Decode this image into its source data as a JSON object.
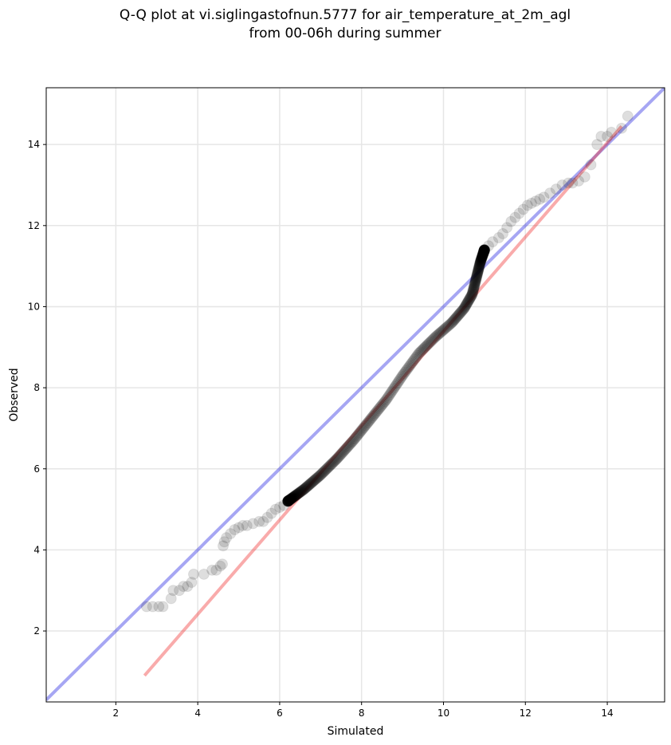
{
  "chart_data": {
    "type": "scatter",
    "title": "Q-Q plot at vi.siglingastofnun.5777 for air_temperature_at_2m_agl\nfrom 00-06h during summer",
    "xlabel": "Simulated",
    "ylabel": "Observed",
    "xlim": [
      0.3,
      15.4
    ],
    "ylim": [
      0.25,
      15.4
    ],
    "xticks": [
      2,
      4,
      6,
      8,
      10,
      12,
      14
    ],
    "yticks": [
      2,
      4,
      6,
      8,
      10,
      12,
      14
    ],
    "grid": true,
    "colors": {
      "points": "#000000",
      "identity_line": "#0000dd",
      "fit_line": "#ee2222",
      "grid": "#e6e6e6"
    },
    "identity_line": {
      "x": [
        0.3,
        15.4
      ],
      "y": [
        0.3,
        15.4
      ]
    },
    "fit_line": {
      "x": [
        2.7,
        14.35
      ],
      "y": [
        0.9,
        14.45
      ]
    },
    "tail_points": [
      [
        2.75,
        2.6
      ],
      [
        2.9,
        2.6
      ],
      [
        3.05,
        2.6
      ],
      [
        3.15,
        2.6
      ],
      [
        3.35,
        2.8
      ],
      [
        3.4,
        3.0
      ],
      [
        3.55,
        3.0
      ],
      [
        3.65,
        3.1
      ],
      [
        3.75,
        3.1
      ],
      [
        3.85,
        3.2
      ],
      [
        3.9,
        3.4
      ],
      [
        4.15,
        3.4
      ],
      [
        4.35,
        3.5
      ],
      [
        4.45,
        3.5
      ],
      [
        4.55,
        3.6
      ],
      [
        4.6,
        3.65
      ],
      [
        4.62,
        4.1
      ],
      [
        4.65,
        4.2
      ],
      [
        4.7,
        4.3
      ],
      [
        4.8,
        4.4
      ],
      [
        4.9,
        4.5
      ],
      [
        5.0,
        4.55
      ],
      [
        5.1,
        4.6
      ],
      [
        5.2,
        4.6
      ],
      [
        5.35,
        4.65
      ],
      [
        5.5,
        4.7
      ],
      [
        5.6,
        4.7
      ],
      [
        5.7,
        4.8
      ],
      [
        5.8,
        4.9
      ],
      [
        5.9,
        5.0
      ],
      [
        6.0,
        5.05
      ],
      [
        6.1,
        5.1
      ],
      [
        6.2,
        5.2
      ],
      [
        11.0,
        11.4
      ],
      [
        11.1,
        11.5
      ],
      [
        11.2,
        11.6
      ],
      [
        11.35,
        11.7
      ],
      [
        11.45,
        11.8
      ],
      [
        11.55,
        11.95
      ],
      [
        11.65,
        12.1
      ],
      [
        11.75,
        12.2
      ],
      [
        11.85,
        12.3
      ],
      [
        11.95,
        12.4
      ],
      [
        12.05,
        12.5
      ],
      [
        12.15,
        12.55
      ],
      [
        12.25,
        12.6
      ],
      [
        12.35,
        12.65
      ],
      [
        12.45,
        12.7
      ],
      [
        12.6,
        12.8
      ],
      [
        12.75,
        12.9
      ],
      [
        12.9,
        13.0
      ],
      [
        13.05,
        13.05
      ],
      [
        13.15,
        13.05
      ],
      [
        13.3,
        13.1
      ],
      [
        13.45,
        13.2
      ],
      [
        13.6,
        13.5
      ],
      [
        13.75,
        14.0
      ],
      [
        13.85,
        14.2
      ],
      [
        14.0,
        14.2
      ],
      [
        14.1,
        14.3
      ],
      [
        14.35,
        14.4
      ],
      [
        14.5,
        14.7
      ]
    ],
    "main_curve_anchors": [
      [
        6.2,
        5.2
      ],
      [
        6.6,
        5.5
      ],
      [
        7.0,
        5.85
      ],
      [
        7.4,
        6.25
      ],
      [
        7.8,
        6.7
      ],
      [
        8.2,
        7.2
      ],
      [
        8.6,
        7.7
      ],
      [
        9.0,
        8.3
      ],
      [
        9.4,
        8.85
      ],
      [
        9.8,
        9.25
      ],
      [
        10.2,
        9.6
      ],
      [
        10.5,
        9.95
      ],
      [
        10.7,
        10.3
      ],
      [
        10.8,
        10.7
      ],
      [
        10.9,
        11.1
      ],
      [
        11.0,
        11.4
      ]
    ],
    "main_curve_point_count": 380
  }
}
